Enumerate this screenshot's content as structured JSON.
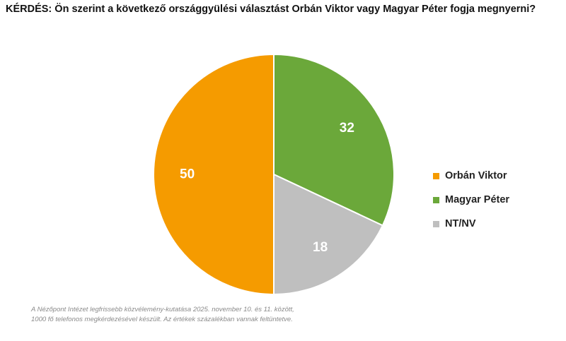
{
  "question": "KÉRDÉS: Ön szerint a következő országgyülési választást Orbán Viktor vagy Magyar Péter fogja megnyerni?",
  "chart_data": {
    "type": "pie",
    "title": "KÉRDÉS: Ön szerint a következő országgyülési választást Orbán Viktor vagy Magyar Péter fogja megnyerni?",
    "labels": [
      "Orbán Viktor",
      "Magyar Péter",
      "NT/NV"
    ],
    "values": [
      50,
      32,
      18
    ],
    "colors": [
      "#F59B00",
      "#6BA83A",
      "#BFBFBF"
    ],
    "data_labels": [
      "50",
      "32",
      "18"
    ],
    "legend_position": "right"
  },
  "legend": {
    "items": [
      {
        "label": "Orbán Viktor",
        "color": "#F59B00"
      },
      {
        "label": "Magyar Péter",
        "color": "#6BA83A"
      },
      {
        "label": "NT/NV",
        "color": "#BFBFBF"
      }
    ]
  },
  "source": {
    "line1": "A Nézőpont Intézet legfrissebb közvélemény-kutatása 2025. november 10. és 11. között,",
    "line2": "1000 fő telefonos megkérdezésével készült. Az értékek százalékban vannak feltüntetve."
  }
}
